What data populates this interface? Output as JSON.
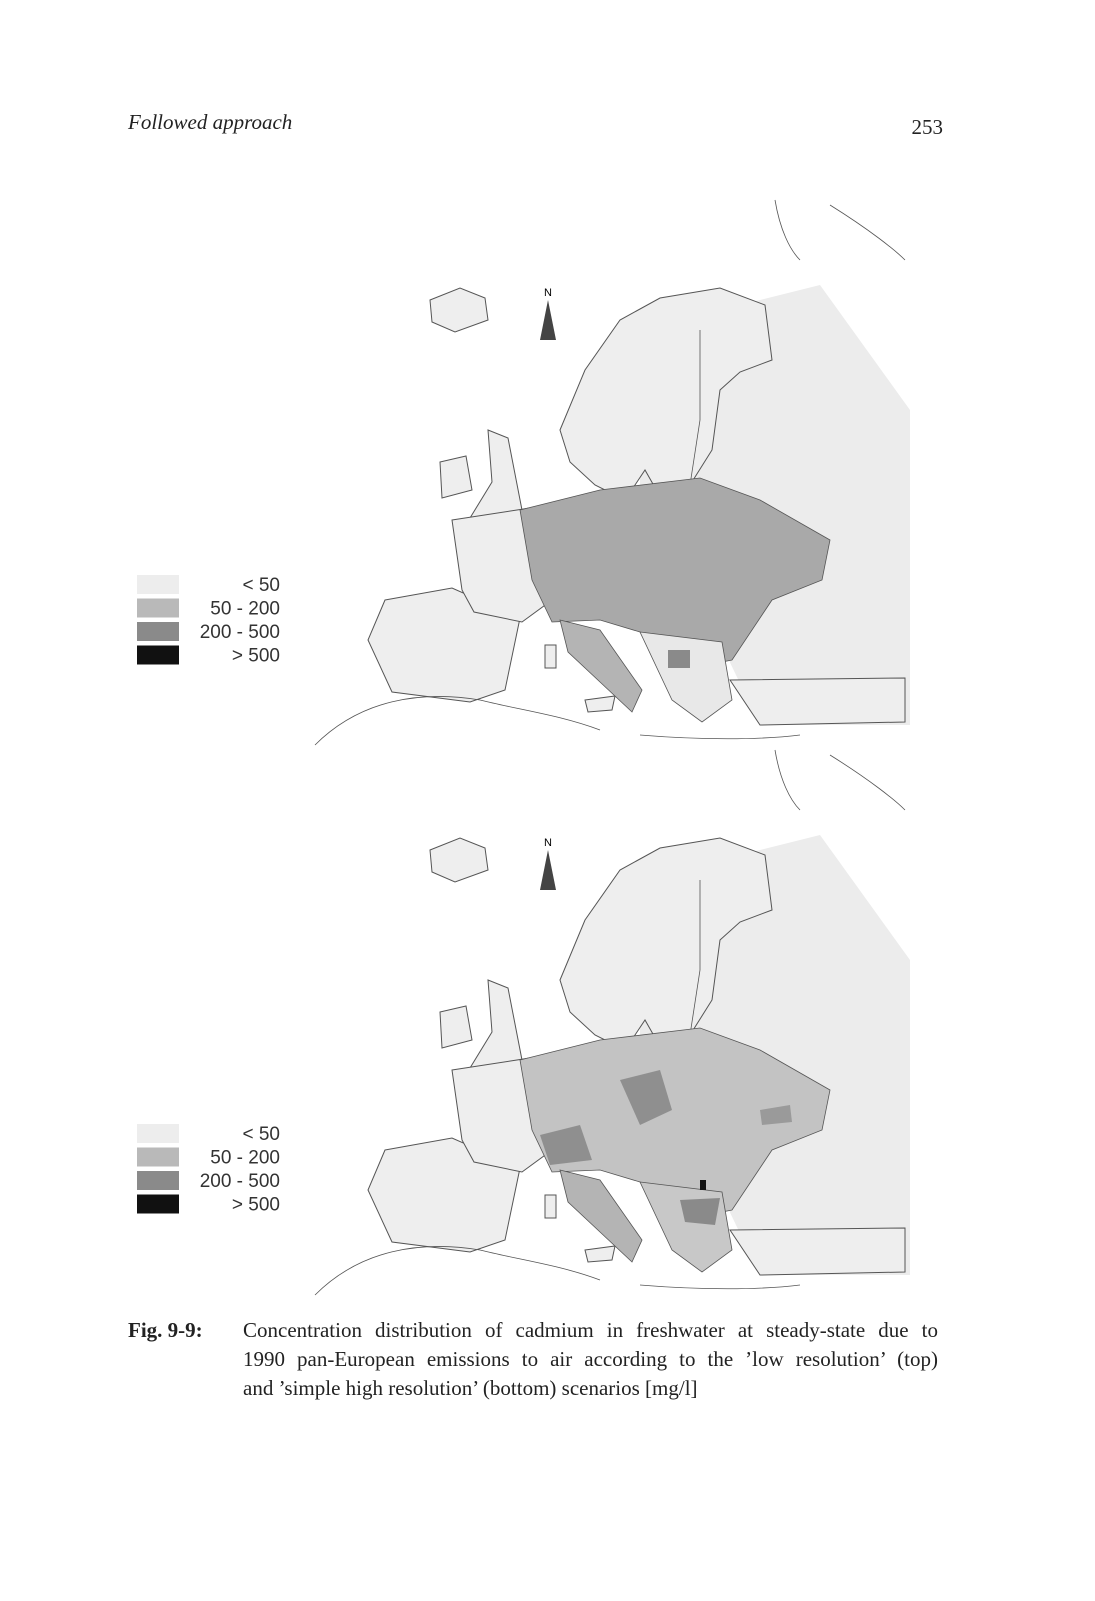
{
  "header": {
    "title": "Followed approach",
    "page_number": "253"
  },
  "figures": [
    {
      "north_label": "N",
      "legend": [
        {
          "label": "< 50",
          "color": "#ededed"
        },
        {
          "label": "50 - 200",
          "color": "#b9b9b9"
        },
        {
          "label": "200 - 500",
          "color": "#8a8a8a"
        },
        {
          "label": "> 500",
          "color": "#111111"
        }
      ]
    },
    {
      "north_label": "N",
      "legend": [
        {
          "label": "< 50",
          "color": "#ededed"
        },
        {
          "label": "50 - 200",
          "color": "#b9b9b9"
        },
        {
          "label": "200 - 500",
          "color": "#8a8a8a"
        },
        {
          "label": "> 500",
          "color": "#111111"
        }
      ]
    }
  ],
  "caption": {
    "label": "Fig. 9-9:",
    "lines": [
      "Concentration distribution of cadmium in freshwater at steady-state due to",
      "1990 pan-European emissions to air according to the ’low resolution’ (top)",
      "and ’simple high resolution’ (bottom) scenarios [mg/l]"
    ]
  }
}
